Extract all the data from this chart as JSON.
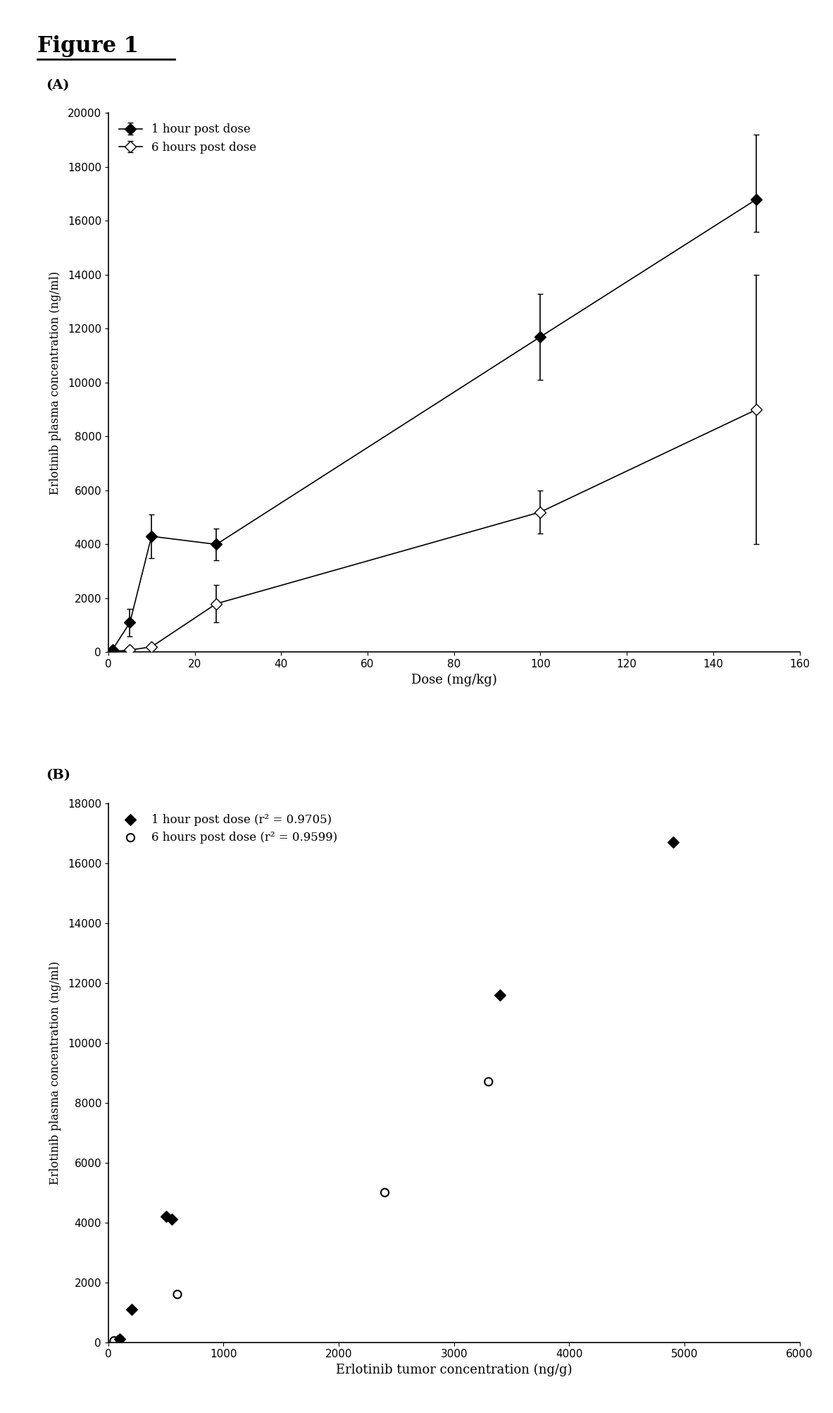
{
  "fig_title": "Figure 1",
  "panel_A": {
    "label": "(A)",
    "series1": {
      "name": "1 hour post dose",
      "x": [
        1,
        5,
        10,
        25,
        100,
        150
      ],
      "y": [
        100,
        1100,
        4300,
        4000,
        11700,
        16800
      ],
      "yerr_low": [
        50,
        500,
        800,
        600,
        1600,
        1200
      ],
      "yerr_high": [
        50,
        500,
        800,
        600,
        1600,
        2400
      ]
    },
    "series2": {
      "name": "6 hours post dose",
      "x": [
        1,
        5,
        10,
        25,
        100,
        150
      ],
      "y": [
        30,
        80,
        200,
        1800,
        5200,
        9000
      ],
      "yerr_low": [
        20,
        50,
        100,
        700,
        800,
        5000
      ],
      "yerr_high": [
        20,
        50,
        100,
        700,
        800,
        5000
      ]
    },
    "xlabel": "Dose (mg/kg)",
    "ylabel": "Erlotinib plasma concentration (ng/ml)",
    "xlim": [
      0,
      160
    ],
    "ylim": [
      0,
      20000
    ],
    "yticks": [
      0,
      2000,
      4000,
      6000,
      8000,
      10000,
      12000,
      14000,
      16000,
      18000,
      20000
    ],
    "xticks": [
      0,
      20,
      40,
      60,
      80,
      100,
      120,
      140,
      160
    ]
  },
  "panel_B": {
    "label": "(B)",
    "series1": {
      "name": "1 hour post dose (r² = 0.9705)",
      "x": [
        100,
        200,
        500,
        550,
        3400,
        4900
      ],
      "y": [
        100,
        1100,
        4200,
        4100,
        11600,
        16700
      ]
    },
    "series2": {
      "name": "6 hours post dose (r² = 0.9599)",
      "x": [
        50,
        100,
        600,
        2400,
        3300
      ],
      "y": [
        50,
        100,
        1600,
        5000,
        8700
      ]
    },
    "xlabel": "Erlotinib tumor concentration (ng/g)",
    "ylabel": "Erlotinib plasma concentration (ng/ml)",
    "xlim": [
      0,
      6000
    ],
    "ylim": [
      0,
      18000
    ],
    "yticks": [
      0,
      2000,
      4000,
      6000,
      8000,
      10000,
      12000,
      14000,
      16000,
      18000
    ],
    "xticks": [
      0,
      1000,
      2000,
      3000,
      4000,
      5000,
      6000
    ]
  }
}
